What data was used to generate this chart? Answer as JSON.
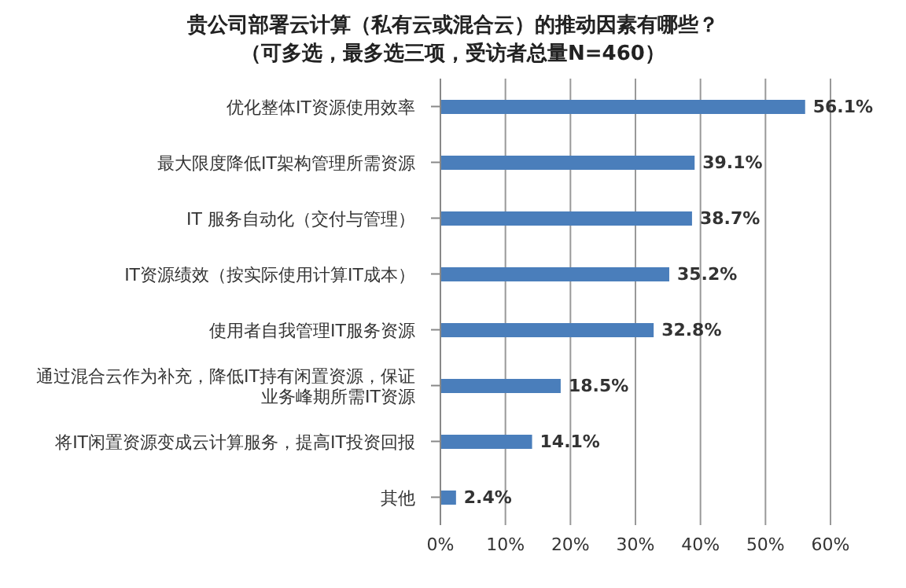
{
  "chart_data": {
    "type": "bar",
    "orientation": "horizontal",
    "title": "贵公司部署云计算（私有云或混合云）的推动因素有哪些？",
    "subtitle": "（可多选，最多选三项，受访者总量N=460）",
    "categories": [
      "优化整体IT资源使用效率",
      "最大限度降低IT架构管理所需资源",
      "IT 服务自动化（交付与管理）",
      "IT资源绩效（按实际使用计算IT成本）",
      "使用者自我管理IT服务资源",
      "通过混合云作为补充，降低IT持有闲置资源，保证业务峰期所需IT资源",
      "将IT闲置资源变成云计算服务，提高IT投资回报",
      "其他"
    ],
    "values": [
      56.1,
      39.1,
      38.7,
      35.2,
      32.8,
      18.5,
      14.1,
      2.4
    ],
    "value_labels": [
      "56.1%",
      "39.1%",
      "38.7%",
      "35.2%",
      "32.8%",
      "18.5%",
      "14.1%",
      "2.4%"
    ],
    "color": "#4a7ebb",
    "xlim": [
      0,
      60
    ],
    "xticks": [
      {
        "value": 0,
        "label": "0%"
      },
      {
        "value": 10,
        "label": "10%"
      },
      {
        "value": 20,
        "label": "20%"
      },
      {
        "value": 30,
        "label": "30%"
      },
      {
        "value": 40,
        "label": "40%"
      },
      {
        "value": 50,
        "label": "50%"
      },
      {
        "value": 60,
        "label": "60%"
      }
    ],
    "grid": "x"
  }
}
